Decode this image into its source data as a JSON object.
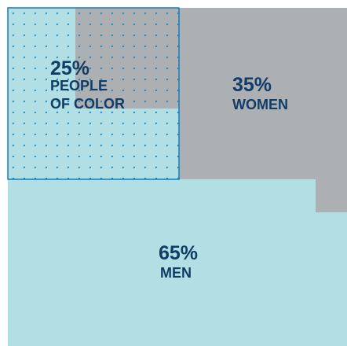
{
  "chart_data": {
    "type": "area",
    "total_percent": 100,
    "segments": [
      {
        "key": "men",
        "value": 65,
        "pct_label": "65%",
        "label": "MEN",
        "color": "#b2dfe3"
      },
      {
        "key": "women",
        "value": 35,
        "pct_label": "35%",
        "label": "WOMEN",
        "color": "#adb0b3"
      },
      {
        "key": "people_of_color",
        "value": 25,
        "pct_label": "25%",
        "label_lines": [
          "PEOPLE",
          "OF COLOR"
        ],
        "fill": "dotted",
        "color": "#0f7fc4",
        "overlays": [
          "men",
          "women"
        ]
      }
    ],
    "colors": {
      "men": "#b2dfe3",
      "women": "#adb0b3",
      "dots": "#0f7fc4",
      "text": "#103d68"
    }
  }
}
